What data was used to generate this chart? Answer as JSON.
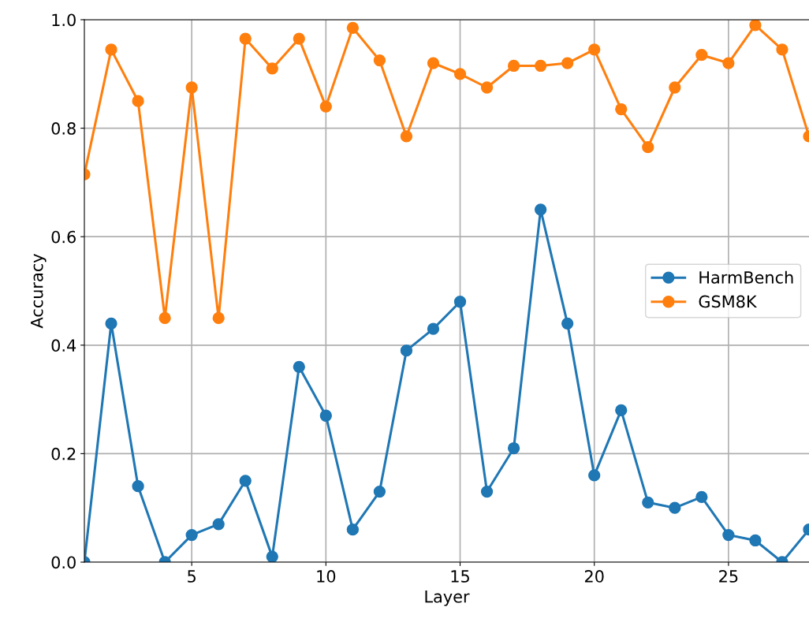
{
  "chart_data": {
    "type": "line",
    "xlabel": "Layer",
    "ylabel": "Accuracy",
    "x": [
      1,
      2,
      3,
      4,
      5,
      6,
      7,
      8,
      9,
      10,
      11,
      12,
      13,
      14,
      15,
      16,
      17,
      18,
      19,
      20,
      21,
      22,
      23,
      24,
      25,
      26,
      27,
      28
    ],
    "series": [
      {
        "name": "HarmBench",
        "color": "#1f77b4",
        "values": [
          0.0,
          0.44,
          0.14,
          0.0,
          0.05,
          0.07,
          0.15,
          0.01,
          0.36,
          0.27,
          0.06,
          0.13,
          0.39,
          0.43,
          0.48,
          0.13,
          0.21,
          0.65,
          0.44,
          0.16,
          0.28,
          0.11,
          0.1,
          0.12,
          0.05,
          0.04,
          0.0,
          0.06
        ]
      },
      {
        "name": "GSM8K",
        "color": "#ff7f0e",
        "values": [
          0.715,
          0.945,
          0.85,
          0.45,
          0.875,
          0.45,
          0.965,
          0.91,
          0.965,
          0.84,
          0.985,
          0.925,
          0.785,
          0.92,
          0.9,
          0.875,
          0.915,
          0.915,
          0.92,
          0.945,
          0.835,
          0.765,
          0.875,
          0.935,
          0.92,
          0.99,
          0.945,
          0.785
        ]
      }
    ],
    "xlim": [
      1,
      28
    ],
    "xticks": [
      5,
      10,
      15,
      20,
      25
    ],
    "ylim": [
      0,
      1
    ],
    "yticks": [
      {
        "value": 0,
        "label": "0.0"
      },
      {
        "value": 0.2,
        "label": "0.2"
      },
      {
        "value": 0.4,
        "label": "0.4"
      },
      {
        "value": 0.6,
        "label": "0.6"
      },
      {
        "value": 0.8,
        "label": "0.8"
      },
      {
        "value": 1,
        "label": "1.0"
      }
    ],
    "grid": true,
    "legend": "right",
    "marker": "circle",
    "line_style": "solid"
  }
}
